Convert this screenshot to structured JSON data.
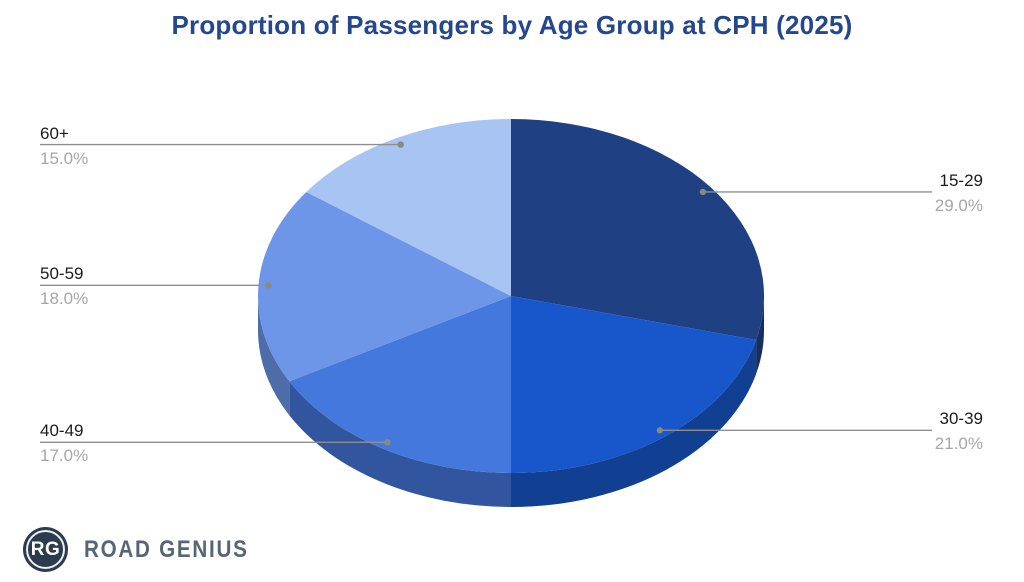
{
  "chart": {
    "title": "Proportion of Passengers by Age Group at CPH (2025)"
  },
  "chart_data": {
    "type": "pie",
    "style": "3d",
    "title": "Proportion of Passengers by Age Group at CPH (2025)",
    "unit": "%",
    "start_angle_deg": 0,
    "direction": "clockwise",
    "slices": [
      {
        "label": "15-29",
        "value": 29.0,
        "pct_label": "29.0%",
        "color": "#1F4184"
      },
      {
        "label": "30-39",
        "value": 21.0,
        "pct_label": "21.0%",
        "color": "#1757CB"
      },
      {
        "label": "40-49",
        "value": 17.0,
        "pct_label": "17.0%",
        "color": "#4478DD"
      },
      {
        "label": "50-59",
        "value": 18.0,
        "pct_label": "18.0%",
        "color": "#6D96E9"
      },
      {
        "label": "60+",
        "value": 15.0,
        "pct_label": "15.0%",
        "color": "#A7C4F2"
      }
    ],
    "title_color": "#24478E",
    "label_color": "#1B1B1B",
    "pct_color": "#A6A6A6",
    "leader_line_color": "#8F8F8F",
    "leader_dot_color": "#8C897D",
    "legend": "none"
  },
  "branding": {
    "badge": "RG",
    "wordmark": "ROAD GENIUS"
  }
}
